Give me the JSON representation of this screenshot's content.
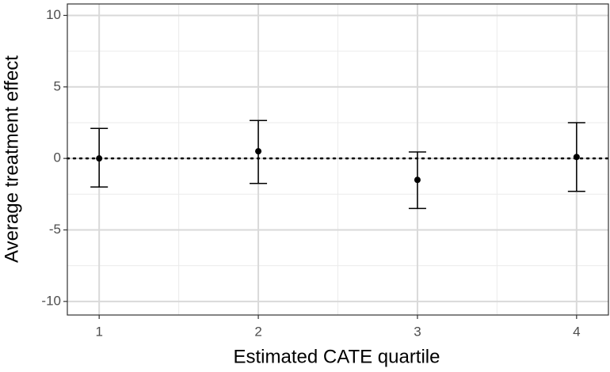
{
  "chart_data": {
    "type": "errorbar",
    "xlabel": "Estimated CATE quartile",
    "ylabel": "Average treatment effect",
    "x": [
      1,
      2,
      3,
      4
    ],
    "values": [
      0.0,
      0.5,
      -1.5,
      0.1
    ],
    "lower": [
      -2.0,
      -1.75,
      -3.5,
      -2.3
    ],
    "upper": [
      2.1,
      2.65,
      0.45,
      2.5
    ],
    "color": "#000000",
    "xlim": [
      0.8,
      4.2
    ],
    "xticks": [
      1,
      2,
      3,
      4
    ],
    "ylim": [
      -10.95,
      10.8
    ],
    "yticks": [
      -10,
      -5,
      0,
      5,
      10
    ],
    "hline": 0,
    "grid": true,
    "minor_grid": true
  }
}
